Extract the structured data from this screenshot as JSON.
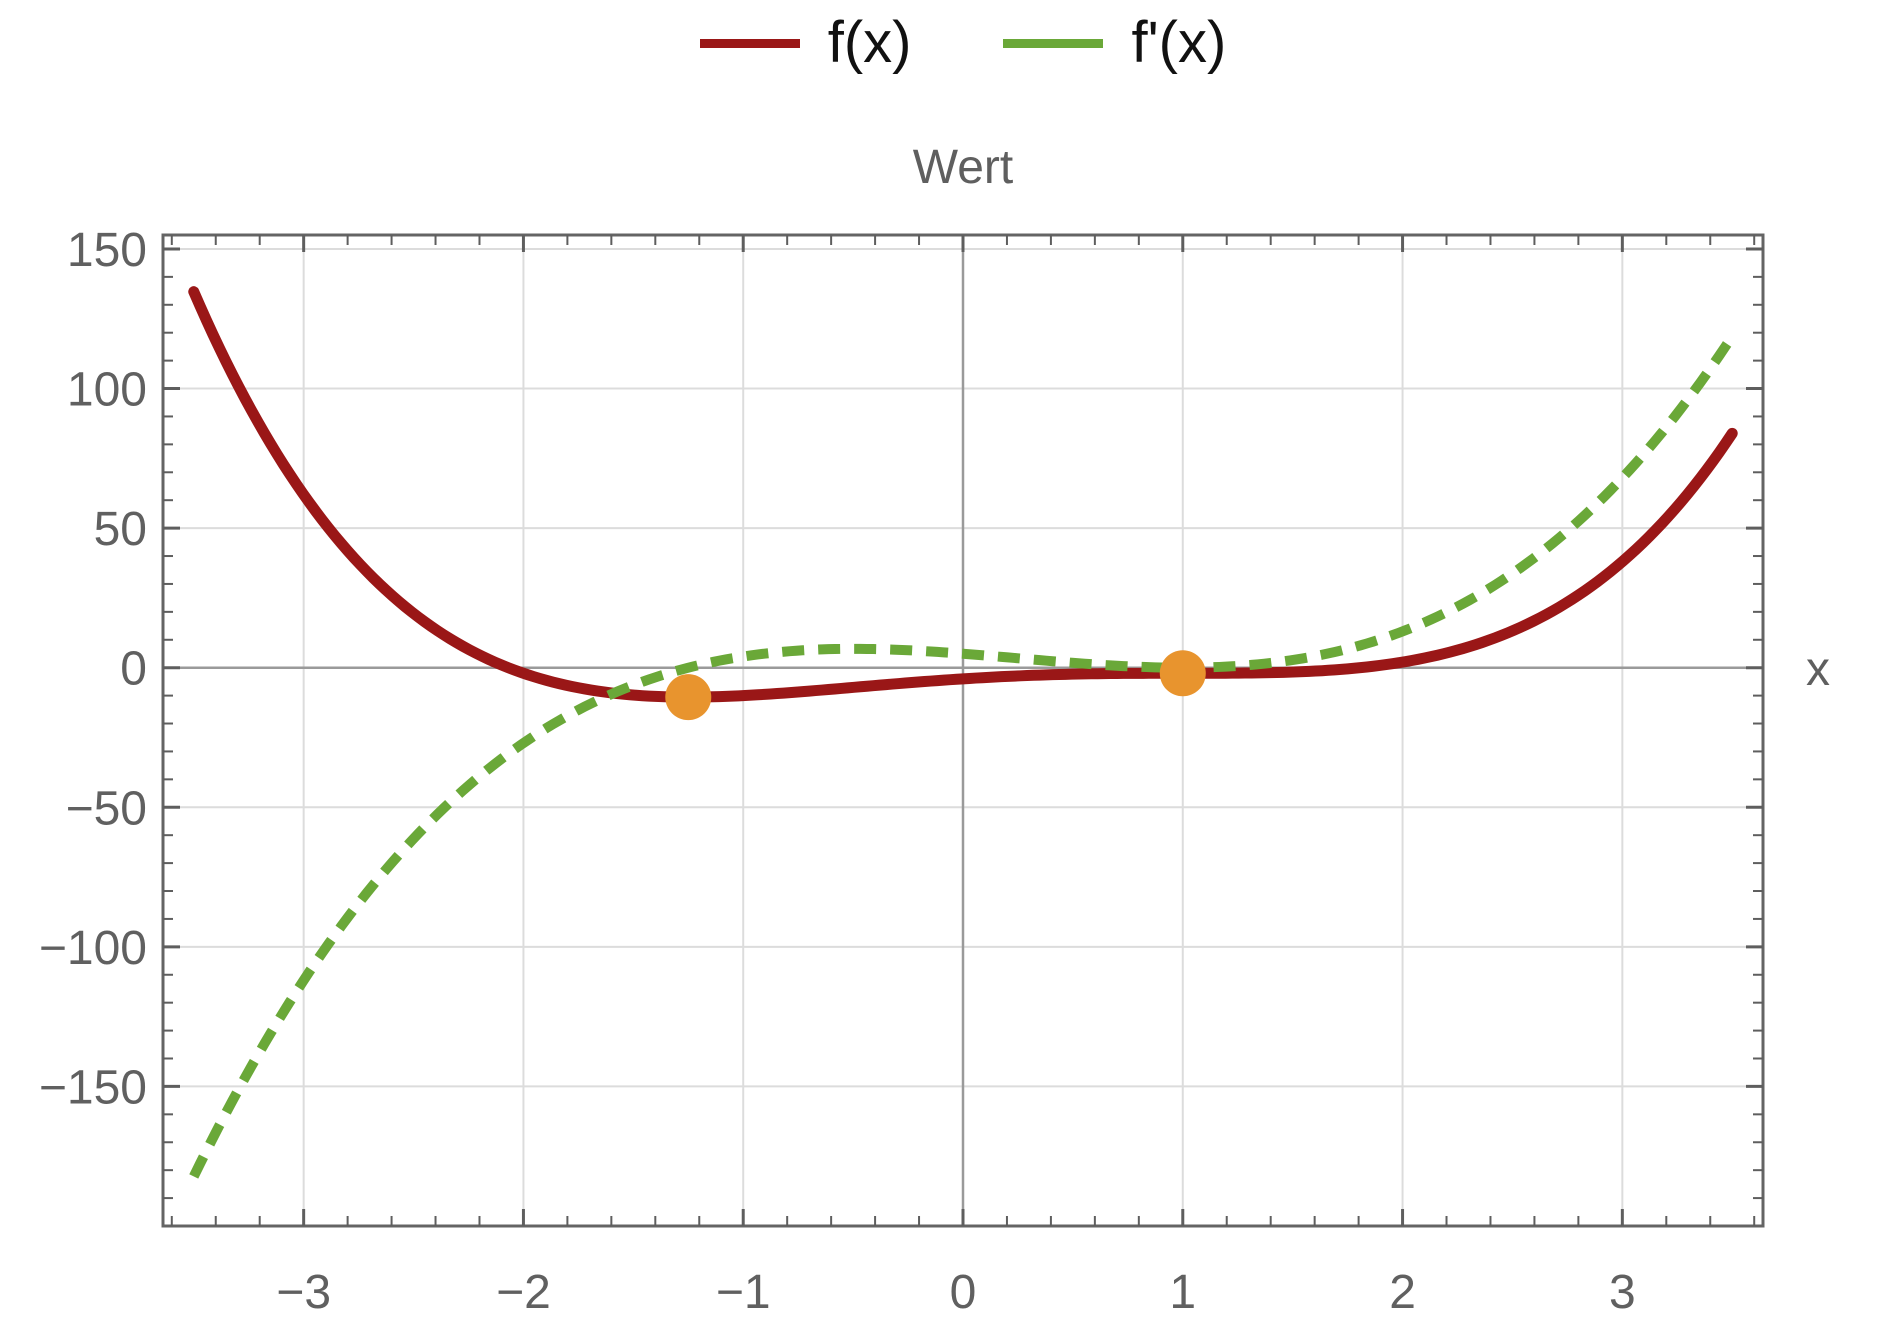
{
  "chart_data": {
    "type": "line",
    "title": "Wert",
    "xlabel": "x",
    "xlim": [
      -3.64,
      3.64
    ],
    "ylim": [
      -200,
      155
    ],
    "grid": true,
    "legend_position": "top-center",
    "x_ticks": [
      {
        "v": -3,
        "label": "−3"
      },
      {
        "v": -2,
        "label": "−2"
      },
      {
        "v": -1,
        "label": "−1"
      },
      {
        "v": 0,
        "label": "0"
      },
      {
        "v": 1,
        "label": "1"
      },
      {
        "v": 2,
        "label": "2"
      },
      {
        "v": 3,
        "label": "3"
      }
    ],
    "y_ticks": [
      {
        "v": 150,
        "label": "150"
      },
      {
        "v": 100,
        "label": "100"
      },
      {
        "v": 50,
        "label": "50"
      },
      {
        "v": 0,
        "label": "0"
      },
      {
        "v": -50,
        "label": "−50"
      },
      {
        "v": -100,
        "label": "−100"
      },
      {
        "v": -150,
        "label": "−150"
      }
    ],
    "x_minor_step": 0.2,
    "y_minor_step": 10,
    "series": [
      {
        "name": "f(x)",
        "type": "polynomial",
        "coefficients_ascending": [
          -4,
          5,
          -3,
          -1,
          1
        ],
        "domain": [
          -3.5,
          3.5
        ],
        "endpoint_values": {
          "x=-3.5": 134.69,
          "x=3.5": 83.94
        },
        "color": "#9A1717",
        "line_style": "solid",
        "line_width": 11
      },
      {
        "name": "f'(x)",
        "type": "polynomial",
        "coefficients_ascending": [
          5,
          -6,
          -3,
          4
        ],
        "domain": [
          -3.5,
          3.5
        ],
        "endpoint_values": {
          "x=-3.5": -182.25,
          "x=3.5": 118.75
        },
        "color": "#6AA838",
        "line_style": "dashed",
        "line_width": 10
      }
    ],
    "marked_points": [
      {
        "x": -1.25,
        "y": -10.54,
        "color": "#E8942E",
        "radius": 23
      },
      {
        "x": 1.0,
        "y": -2.0,
        "color": "#E8942E",
        "radius": 23
      }
    ],
    "colors": {
      "frame": "#646464",
      "tick": "#5e5e5e",
      "grid_line": "#dcdcdc",
      "zero_axis_line": "#9a9a9a",
      "tick_label": "#606060",
      "title": "#5f5f5f"
    }
  }
}
